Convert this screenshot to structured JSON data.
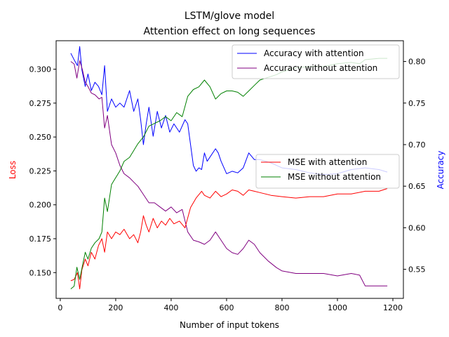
{
  "chart_data": {
    "type": "line",
    "title": "LSTM/glove model",
    "subtitle": "Attention effect on long sequences",
    "xlabel": "Number of input tokens",
    "ylabel_left": "Loss",
    "ylabel_right": "Accuracy",
    "xlim": [
      -15,
      1238
    ],
    "ylim_left": [
      0.131,
      0.321
    ],
    "ylim_right": [
      0.515,
      0.825
    ],
    "xticks": [
      0,
      200,
      400,
      600,
      800,
      1000,
      1200
    ],
    "yticks_left": [
      0.15,
      0.175,
      0.2,
      0.225,
      0.25,
      0.275,
      0.3
    ],
    "yticks_right": [
      0.55,
      0.6,
      0.65,
      0.7,
      0.75,
      0.8
    ],
    "grid": false,
    "legend_top": "top-right",
    "legend_bottom": "center-right",
    "colors": {
      "ylabel_left": "#ff0000",
      "ylabel_right": "#0000ff"
    },
    "series": [
      {
        "name": "Accuracy with attention",
        "axis": "right",
        "color": "#0000ff",
        "x": [
          38,
          50,
          62,
          70,
          78,
          90,
          100,
          112,
          125,
          138,
          150,
          160,
          170,
          185,
          200,
          215,
          230,
          250,
          265,
          280,
          290,
          300,
          310,
          320,
          335,
          350,
          365,
          380,
          395,
          410,
          430,
          450,
          460,
          470,
          480,
          490,
          500,
          510,
          520,
          530,
          540,
          560,
          570,
          580,
          600,
          620,
          640,
          660,
          680,
          700,
          720,
          760,
          800,
          850,
          900,
          950,
          1000,
          1050,
          1100,
          1150,
          1180
        ],
        "y": [
          0.81,
          0.802,
          0.795,
          0.818,
          0.79,
          0.77,
          0.785,
          0.765,
          0.775,
          0.77,
          0.76,
          0.795,
          0.74,
          0.755,
          0.745,
          0.75,
          0.745,
          0.765,
          0.74,
          0.755,
          0.73,
          0.7,
          0.725,
          0.745,
          0.71,
          0.74,
          0.72,
          0.735,
          0.715,
          0.725,
          0.715,
          0.73,
          0.725,
          0.7,
          0.675,
          0.668,
          0.672,
          0.67,
          0.69,
          0.68,
          0.685,
          0.695,
          0.69,
          0.68,
          0.665,
          0.668,
          0.666,
          0.672,
          0.69,
          0.682,
          0.682,
          0.678,
          0.672,
          0.67,
          0.666,
          0.664,
          0.665,
          0.67,
          0.672,
          0.67,
          0.667
        ]
      },
      {
        "name": "Accuracy without attention",
        "axis": "right",
        "color": "#800080",
        "x": [
          38,
          50,
          60,
          70,
          80,
          90,
          100,
          112,
          125,
          140,
          150,
          160,
          170,
          185,
          200,
          215,
          230,
          250,
          265,
          280,
          300,
          320,
          340,
          360,
          380,
          400,
          420,
          440,
          460,
          480,
          500,
          520,
          540,
          560,
          580,
          600,
          620,
          640,
          660,
          680,
          700,
          720,
          750,
          780,
          800,
          850,
          900,
          950,
          1000,
          1050,
          1080,
          1100,
          1150,
          1180
        ],
        "y": [
          0.8,
          0.797,
          0.78,
          0.801,
          0.79,
          0.775,
          0.77,
          0.762,
          0.76,
          0.755,
          0.757,
          0.72,
          0.735,
          0.7,
          0.69,
          0.675,
          0.665,
          0.66,
          0.655,
          0.65,
          0.64,
          0.63,
          0.63,
          0.625,
          0.62,
          0.625,
          0.618,
          0.622,
          0.595,
          0.585,
          0.583,
          0.58,
          0.585,
          0.595,
          0.585,
          0.575,
          0.57,
          0.568,
          0.575,
          0.585,
          0.58,
          0.57,
          0.56,
          0.552,
          0.548,
          0.545,
          0.545,
          0.545,
          0.542,
          0.545,
          0.543,
          0.53,
          0.53,
          0.53
        ]
      },
      {
        "name": "MSE with attention",
        "axis": "left",
        "color": "#ff0000",
        "x": [
          38,
          50,
          62,
          70,
          78,
          90,
          100,
          112,
          125,
          138,
          150,
          160,
          170,
          185,
          200,
          215,
          230,
          250,
          265,
          280,
          290,
          300,
          310,
          320,
          335,
          350,
          365,
          380,
          395,
          410,
          430,
          450,
          470,
          490,
          510,
          520,
          540,
          560,
          580,
          600,
          620,
          640,
          660,
          680,
          700,
          720,
          760,
          800,
          850,
          900,
          950,
          1000,
          1050,
          1100,
          1150,
          1180
        ],
        "y": [
          0.144,
          0.145,
          0.15,
          0.138,
          0.152,
          0.16,
          0.155,
          0.165,
          0.16,
          0.17,
          0.175,
          0.165,
          0.18,
          0.175,
          0.18,
          0.178,
          0.182,
          0.175,
          0.178,
          0.172,
          0.18,
          0.192,
          0.185,
          0.18,
          0.19,
          0.183,
          0.188,
          0.185,
          0.19,
          0.186,
          0.188,
          0.183,
          0.198,
          0.205,
          0.21,
          0.207,
          0.205,
          0.21,
          0.206,
          0.208,
          0.211,
          0.21,
          0.207,
          0.211,
          0.21,
          0.209,
          0.207,
          0.206,
          0.205,
          0.206,
          0.206,
          0.208,
          0.208,
          0.21,
          0.21,
          0.212
        ]
      },
      {
        "name": "MSE without attention",
        "axis": "left",
        "color": "#008000",
        "x": [
          38,
          50,
          60,
          70,
          80,
          90,
          100,
          112,
          125,
          140,
          150,
          160,
          170,
          185,
          200,
          215,
          230,
          250,
          265,
          280,
          300,
          320,
          340,
          360,
          380,
          400,
          420,
          440,
          460,
          480,
          500,
          520,
          540,
          560,
          580,
          600,
          620,
          640,
          660,
          680,
          700,
          720,
          750,
          780,
          800,
          850,
          900,
          950,
          1000,
          1050,
          1080,
          1100,
          1150,
          1180
        ],
        "y": [
          0.138,
          0.14,
          0.154,
          0.145,
          0.155,
          0.165,
          0.16,
          0.168,
          0.172,
          0.175,
          0.18,
          0.205,
          0.195,
          0.215,
          0.22,
          0.225,
          0.232,
          0.235,
          0.24,
          0.245,
          0.25,
          0.258,
          0.26,
          0.262,
          0.265,
          0.262,
          0.268,
          0.265,
          0.28,
          0.285,
          0.287,
          0.292,
          0.287,
          0.278,
          0.282,
          0.284,
          0.284,
          0.283,
          0.28,
          0.284,
          0.288,
          0.292,
          0.294,
          0.296,
          0.298,
          0.301,
          0.302,
          0.302,
          0.304,
          0.305,
          0.304,
          0.307,
          0.308,
          0.308
        ]
      }
    ]
  }
}
